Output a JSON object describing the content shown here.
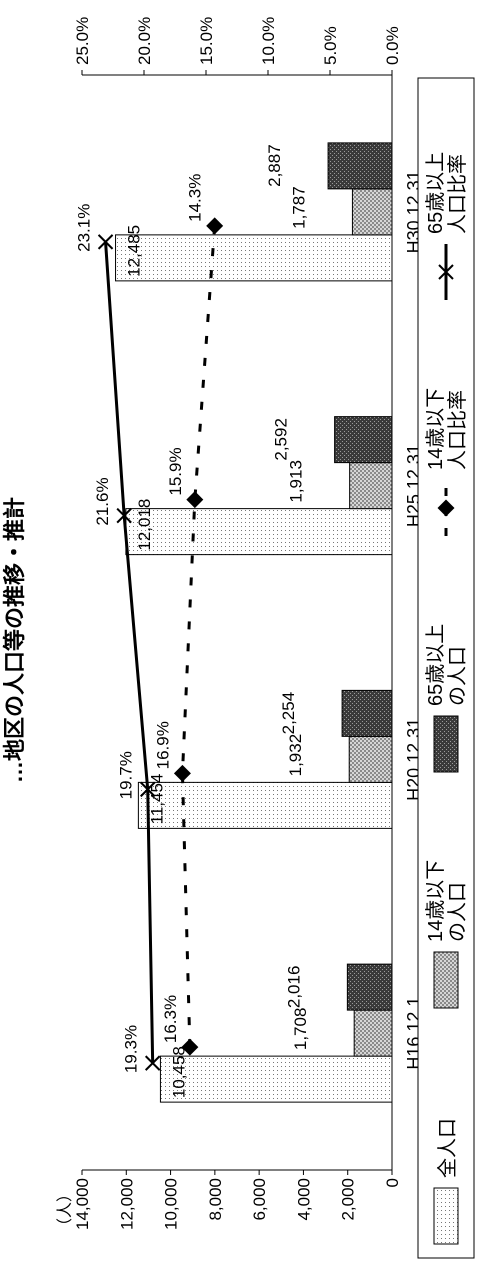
{
  "chart_data": {
    "type": "bar",
    "title": "…地区の人口等の推移・推計",
    "unit_left": "（人）",
    "categories": [
      "H16.12.1",
      "H20.12.31",
      "H25.12.31",
      "H30.12.31"
    ],
    "ylim_left": [
      0,
      14000
    ],
    "yticks_left": [
      "0",
      "2,000",
      "4,000",
      "6,000",
      "8,000",
      "10,000",
      "12,000",
      "14,000"
    ],
    "ylim_right": [
      0,
      25
    ],
    "yticks_right": [
      "0.0%",
      "5.0%",
      "10.0%",
      "15.0%",
      "20.0%",
      "25.0%"
    ],
    "series": [
      {
        "name": "全人口",
        "kind": "bar",
        "values": [
          10458,
          11454,
          12018,
          12485
        ],
        "labels": [
          "10,458",
          "11,454",
          "12,018",
          "12,485"
        ]
      },
      {
        "name": "14歳以下の人口",
        "kind": "bar",
        "values": [
          1708,
          1932,
          1913,
          1787
        ],
        "labels": [
          "1,708",
          "1,932",
          "1,913",
          "1,787"
        ]
      },
      {
        "name": "65歳以上の人口",
        "kind": "bar",
        "values": [
          2016,
          2254,
          2592,
          2887
        ],
        "labels": [
          "2,016",
          "2,254",
          "2,592",
          "2,887"
        ]
      },
      {
        "name": "14歳以下人口比率",
        "kind": "line",
        "axis": "right",
        "values": [
          16.3,
          16.9,
          15.9,
          14.3
        ],
        "labels": [
          "16.3%",
          "16.9%",
          "15.9%",
          "14.3%"
        ]
      },
      {
        "name": "65歳以上人口比率",
        "kind": "line",
        "axis": "right",
        "values": [
          19.3,
          19.7,
          21.6,
          23.1
        ],
        "labels": [
          "19.3%",
          "19.7%",
          "21.6%",
          "23.1%"
        ]
      }
    ],
    "legend": {
      "position": "bottom",
      "items": [
        {
          "lines": [
            "全人口"
          ],
          "swatch": "dots"
        },
        {
          "lines": [
            "14歳以下",
            "の人口"
          ],
          "swatch": "hatch"
        },
        {
          "lines": [
            "65歳以上",
            "の人口"
          ],
          "swatch": "dark"
        },
        {
          "lines": [
            "14歳以下",
            "人口比率"
          ],
          "swatch": "dash-diamond"
        },
        {
          "lines": [
            "65歳以上",
            "人口比率"
          ],
          "swatch": "solid-x"
        }
      ]
    }
  }
}
